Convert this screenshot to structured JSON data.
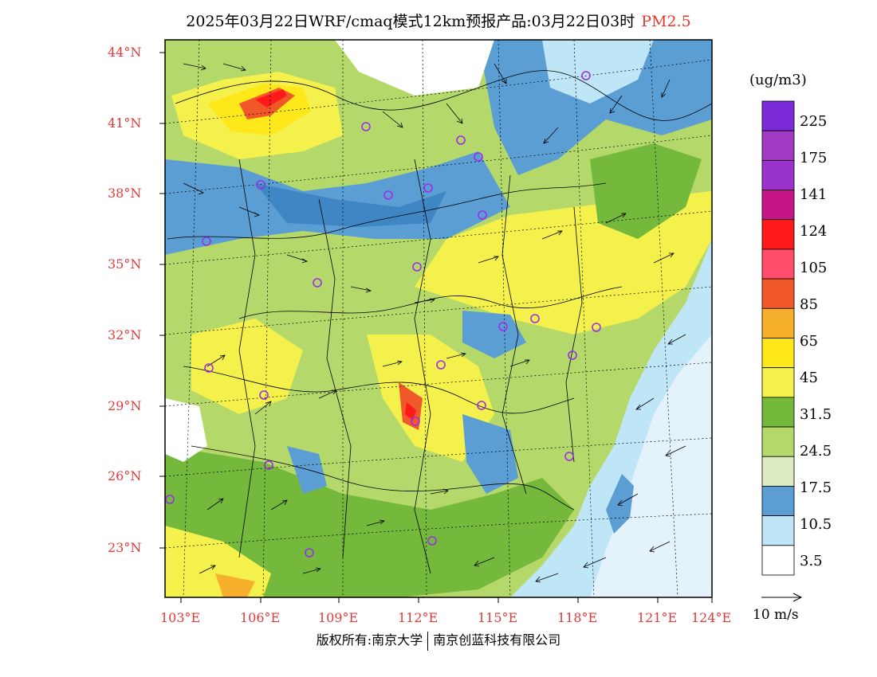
{
  "title": {
    "main": "2025年03月22日WRF/cmaq模式12km预报产品:03月22日03时",
    "pollutant": "PM2.5"
  },
  "axes": {
    "lat_labels": [
      "44°N",
      "41°N",
      "38°N",
      "35°N",
      "32°N",
      "29°N",
      "26°N",
      "23°N"
    ],
    "lon_labels": [
      "103°E",
      "106°E",
      "109°E",
      "112°E",
      "115°E",
      "118°E",
      "121°E",
      "124°E"
    ]
  },
  "legend": {
    "unit": "(ug/m3)",
    "entries": [
      {
        "label": "225",
        "color": "#9933cc"
      },
      {
        "label": "175",
        "color": "#c41486"
      },
      {
        "label": "141",
        "color": "#ff1a1a"
      },
      {
        "label": "124",
        "color": "#ff4d6b"
      },
      {
        "label": "105",
        "color": "#f0582a"
      },
      {
        "label": "85",
        "color": "#f6b02c"
      },
      {
        "label": "65",
        "color": "#ffe81a"
      },
      {
        "label": "45",
        "color": "#f4f04c"
      },
      {
        "label": "31.5",
        "color": "#74b83c"
      },
      {
        "label": "24.5",
        "color": "#b5d86a"
      },
      {
        "label": "17.5",
        "color": "#dcebc0"
      },
      {
        "label": "10.5",
        "color": "#5b9ed4"
      },
      {
        "label": "3.5",
        "color": "#bfe6f7"
      }
    ],
    "top_colors": [
      "#7a2ad6",
      "#a13ac2"
    ],
    "bottom_color": "#ffffff"
  },
  "wind_vector": {
    "label": "10 m/s"
  },
  "footer": {
    "left": "版权所有:南京大学",
    "right": "南京创蓝科技有限公司"
  },
  "colors": {
    "border": "#000000",
    "tick_text": "#e23a3a",
    "station_marker": "#9b2ee8"
  }
}
